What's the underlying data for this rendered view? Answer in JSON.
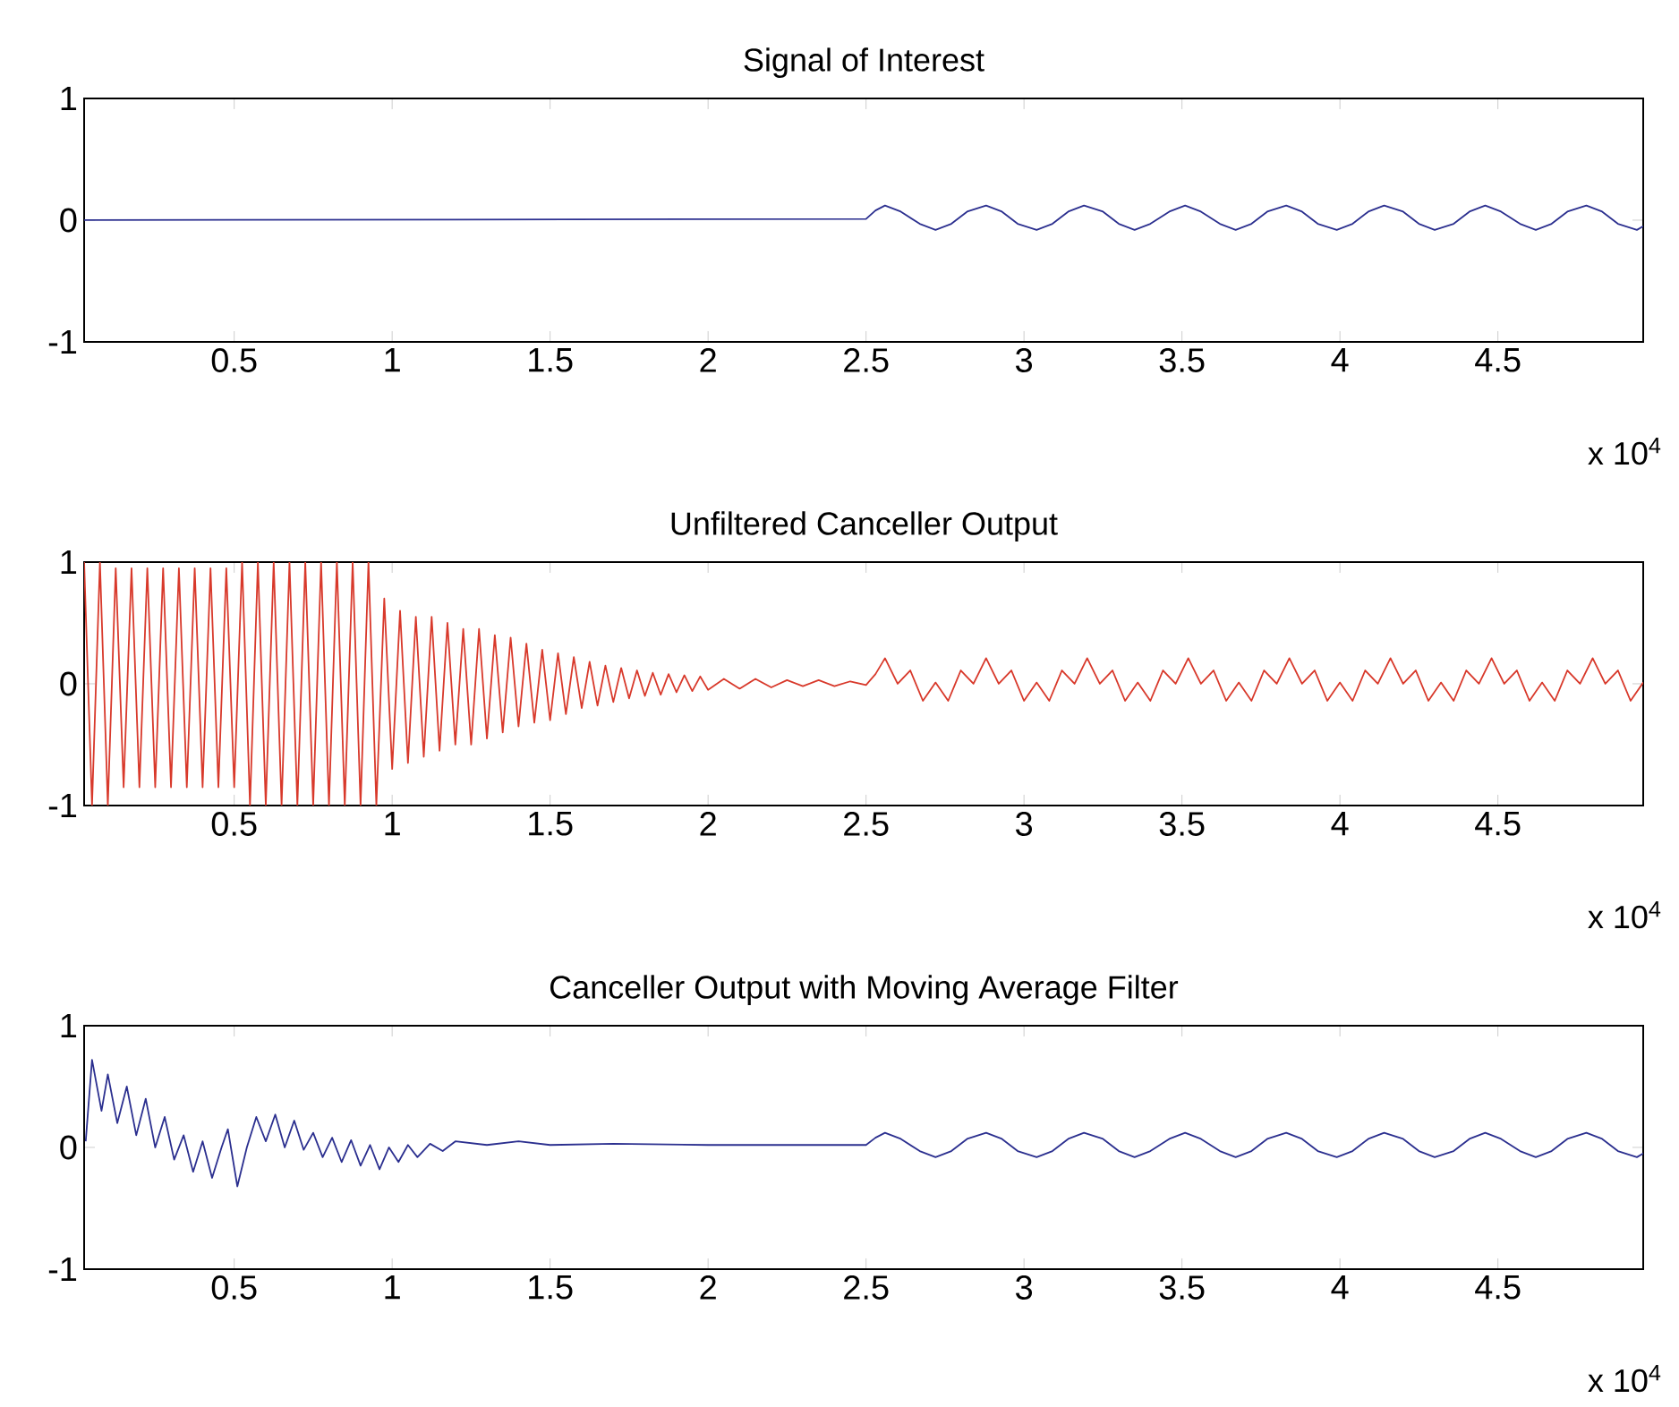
{
  "chart_data": [
    {
      "type": "line",
      "title": "Signal of Interest",
      "xlim": [
        0.025,
        4.96
      ],
      "ylim": [
        -1,
        1
      ],
      "yticks": [
        -1,
        0,
        1
      ],
      "xticks": [
        0.5,
        1,
        1.5,
        2,
        2.5,
        3,
        3.5,
        4,
        4.5
      ],
      "annotations": [
        "x 10$^{4}$"
      ],
      "series": [
        {
          "color": "#2b2f8f",
          "x": [
            0.025,
            2.5,
            2.53,
            2.56,
            2.61,
            2.67,
            2.72,
            2.77,
            2.82,
            2.88,
            2.93,
            2.98,
            3.04,
            3.09,
            3.14,
            3.19,
            3.25,
            3.3,
            3.35,
            3.4,
            3.46,
            3.51,
            3.56,
            3.62,
            3.67,
            3.72,
            3.77,
            3.83,
            3.88,
            3.93,
            3.99,
            4.04,
            4.09,
            4.14,
            4.2,
            4.25,
            4.3,
            4.36,
            4.41,
            4.46,
            4.51,
            4.57,
            4.62,
            4.67,
            4.72,
            4.78,
            4.83,
            4.88,
            4.94,
            4.96
          ],
          "values": [
            0,
            0.01,
            0.08,
            0.12,
            0.07,
            -0.03,
            -0.08,
            -0.03,
            0.07,
            0.12,
            0.07,
            -0.03,
            -0.08,
            -0.03,
            0.07,
            0.12,
            0.07,
            -0.03,
            -0.08,
            -0.03,
            0.07,
            0.12,
            0.07,
            -0.03,
            -0.08,
            -0.03,
            0.07,
            0.12,
            0.07,
            -0.03,
            -0.08,
            -0.03,
            0.07,
            0.12,
            0.07,
            -0.03,
            -0.08,
            -0.03,
            0.07,
            0.12,
            0.07,
            -0.03,
            -0.08,
            -0.03,
            0.07,
            0.12,
            0.07,
            -0.03,
            -0.08,
            -0.05
          ]
        }
      ]
    },
    {
      "type": "line",
      "title": "Unfiltered Canceller Output",
      "xlim": [
        0.025,
        4.96
      ],
      "ylim": [
        -1,
        1
      ],
      "yticks": [
        -1,
        0,
        1
      ],
      "xticks": [
        0.5,
        1,
        1.5,
        2,
        2.5,
        3,
        3.5,
        4,
        4.5
      ],
      "annotations": [
        "x 10$^{4}$"
      ],
      "series": [
        {
          "color": "#d8392b",
          "x": [
            0.025,
            0.05,
            0.075,
            0.1,
            0.125,
            0.15,
            0.175,
            0.2,
            0.225,
            0.25,
            0.275,
            0.3,
            0.325,
            0.35,
            0.375,
            0.4,
            0.425,
            0.45,
            0.475,
            0.5,
            0.525,
            0.55,
            0.575,
            0.6,
            0.625,
            0.65,
            0.675,
            0.7,
            0.725,
            0.75,
            0.775,
            0.8,
            0.825,
            0.85,
            0.875,
            0.9,
            0.925,
            0.95,
            0.975,
            1.0,
            1.025,
            1.05,
            1.075,
            1.1,
            1.125,
            1.15,
            1.175,
            1.2,
            1.225,
            1.25,
            1.275,
            1.3,
            1.325,
            1.35,
            1.375,
            1.4,
            1.425,
            1.45,
            1.475,
            1.5,
            1.525,
            1.55,
            1.575,
            1.6,
            1.625,
            1.65,
            1.675,
            1.7,
            1.725,
            1.75,
            1.775,
            1.8,
            1.825,
            1.85,
            1.875,
            1.9,
            1.925,
            1.95,
            1.975,
            2.0,
            2.05,
            2.1,
            2.15,
            2.2,
            2.25,
            2.3,
            2.35,
            2.4,
            2.45,
            2.5,
            2.53,
            2.56,
            2.6,
            2.64,
            2.68,
            2.72,
            2.76,
            2.8,
            2.84,
            2.88,
            2.92,
            2.96,
            3.0,
            3.04,
            3.08,
            3.12,
            3.16,
            3.2,
            3.24,
            3.28,
            3.32,
            3.36,
            3.4,
            3.44,
            3.48,
            3.52,
            3.56,
            3.6,
            3.64,
            3.68,
            3.72,
            3.76,
            3.8,
            3.84,
            3.88,
            3.92,
            3.96,
            4.0,
            4.04,
            4.08,
            4.12,
            4.16,
            4.2,
            4.24,
            4.28,
            4.32,
            4.36,
            4.4,
            4.44,
            4.48,
            4.52,
            4.56,
            4.6,
            4.64,
            4.68,
            4.72,
            4.76,
            4.8,
            4.84,
            4.88,
            4.92,
            4.96
          ],
          "values": [
            1,
            -1,
            1,
            -1,
            0.95,
            -0.85,
            0.95,
            -0.85,
            0.95,
            -0.85,
            0.95,
            -0.85,
            0.95,
            -0.85,
            0.95,
            -0.85,
            0.95,
            -0.85,
            0.95,
            -0.85,
            1,
            -1,
            1,
            -1,
            1,
            -1,
            1,
            -1,
            1,
            -1,
            1,
            -1,
            1,
            -1,
            1,
            -1,
            1,
            -1,
            0.7,
            -0.7,
            0.6,
            -0.65,
            0.55,
            -0.6,
            0.55,
            -0.55,
            0.5,
            -0.5,
            0.45,
            -0.5,
            0.45,
            -0.45,
            0.4,
            -0.4,
            0.38,
            -0.35,
            0.33,
            -0.32,
            0.28,
            -0.3,
            0.25,
            -0.25,
            0.22,
            -0.2,
            0.18,
            -0.18,
            0.15,
            -0.15,
            0.13,
            -0.12,
            0.11,
            -0.1,
            0.09,
            -0.09,
            0.08,
            -0.07,
            0.07,
            -0.06,
            0.06,
            -0.05,
            0.04,
            -0.04,
            0.04,
            -0.03,
            0.03,
            -0.02,
            0.03,
            -0.02,
            0.02,
            -0.01,
            0.08,
            0.21,
            0,
            0.11,
            -0.14,
            0.01,
            -0.14,
            0.11,
            0,
            0.21,
            0,
            0.11,
            -0.14,
            0.01,
            -0.14,
            0.11,
            0,
            0.21,
            0,
            0.11,
            -0.14,
            0.01,
            -0.14,
            0.11,
            0,
            0.21,
            0,
            0.11,
            -0.14,
            0.01,
            -0.14,
            0.11,
            0,
            0.21,
            0,
            0.11,
            -0.14,
            0.01,
            -0.14,
            0.11,
            0,
            0.21,
            0,
            0.11,
            -0.14,
            0.01,
            -0.14,
            0.11,
            0,
            0.21,
            0,
            0.11,
            -0.14,
            0.01,
            -0.14,
            0.11,
            0,
            0.21,
            0,
            0.11,
            -0.14,
            0.01
          ]
        }
      ]
    },
    {
      "type": "line",
      "title": "Canceller Output with Moving Average Filter",
      "xlim": [
        0.025,
        4.96
      ],
      "ylim": [
        -1,
        1
      ],
      "yticks": [
        -1,
        0,
        1
      ],
      "xticks": [
        0.5,
        1,
        1.5,
        2,
        2.5,
        3,
        3.5,
        4,
        4.5
      ],
      "annotations": [
        "x 10$^{4}$"
      ],
      "series": [
        {
          "color": "#2b2f8f",
          "x": [
            0.03,
            0.05,
            0.08,
            0.1,
            0.13,
            0.16,
            0.19,
            0.22,
            0.25,
            0.28,
            0.31,
            0.34,
            0.37,
            0.4,
            0.43,
            0.46,
            0.48,
            0.51,
            0.54,
            0.57,
            0.6,
            0.63,
            0.66,
            0.69,
            0.72,
            0.75,
            0.78,
            0.81,
            0.84,
            0.87,
            0.9,
            0.93,
            0.96,
            0.99,
            1.02,
            1.05,
            1.08,
            1.12,
            1.16,
            1.2,
            1.3,
            1.4,
            1.5,
            1.7,
            2.0,
            2.5,
            2.53,
            2.56,
            2.61,
            2.67,
            2.72,
            2.77,
            2.82,
            2.88,
            2.93,
            2.98,
            3.04,
            3.09,
            3.14,
            3.19,
            3.25,
            3.3,
            3.35,
            3.4,
            3.46,
            3.51,
            3.56,
            3.62,
            3.67,
            3.72,
            3.77,
            3.83,
            3.88,
            3.93,
            3.99,
            4.04,
            4.09,
            4.14,
            4.2,
            4.25,
            4.3,
            4.36,
            4.41,
            4.46,
            4.51,
            4.57,
            4.62,
            4.67,
            4.72,
            4.78,
            4.83,
            4.88,
            4.94,
            4.96
          ],
          "values": [
            0.05,
            0.72,
            0.3,
            0.6,
            0.2,
            0.5,
            0.1,
            0.4,
            0,
            0.25,
            -0.1,
            0.1,
            -0.2,
            0.05,
            -0.25,
            0,
            0.15,
            -0.32,
            0,
            0.25,
            0.05,
            0.27,
            0,
            0.22,
            -0.02,
            0.12,
            -0.08,
            0.08,
            -0.12,
            0.06,
            -0.15,
            0.02,
            -0.18,
            0,
            -0.12,
            0.02,
            -0.08,
            0.03,
            -0.03,
            0.05,
            0.02,
            0.05,
            0.02,
            0.03,
            0.02,
            0.02,
            0.08,
            0.12,
            0.07,
            -0.03,
            -0.08,
            -0.03,
            0.07,
            0.12,
            0.07,
            -0.03,
            -0.08,
            -0.03,
            0.07,
            0.12,
            0.07,
            -0.03,
            -0.08,
            -0.03,
            0.07,
            0.12,
            0.07,
            -0.03,
            -0.08,
            -0.03,
            0.07,
            0.12,
            0.07,
            -0.03,
            -0.08,
            -0.03,
            0.07,
            0.12,
            0.07,
            -0.03,
            -0.08,
            -0.03,
            0.07,
            0.12,
            0.07,
            -0.03,
            -0.08,
            -0.03,
            0.07,
            0.12,
            0.07,
            -0.03,
            -0.08,
            -0.05
          ]
        }
      ]
    }
  ]
}
